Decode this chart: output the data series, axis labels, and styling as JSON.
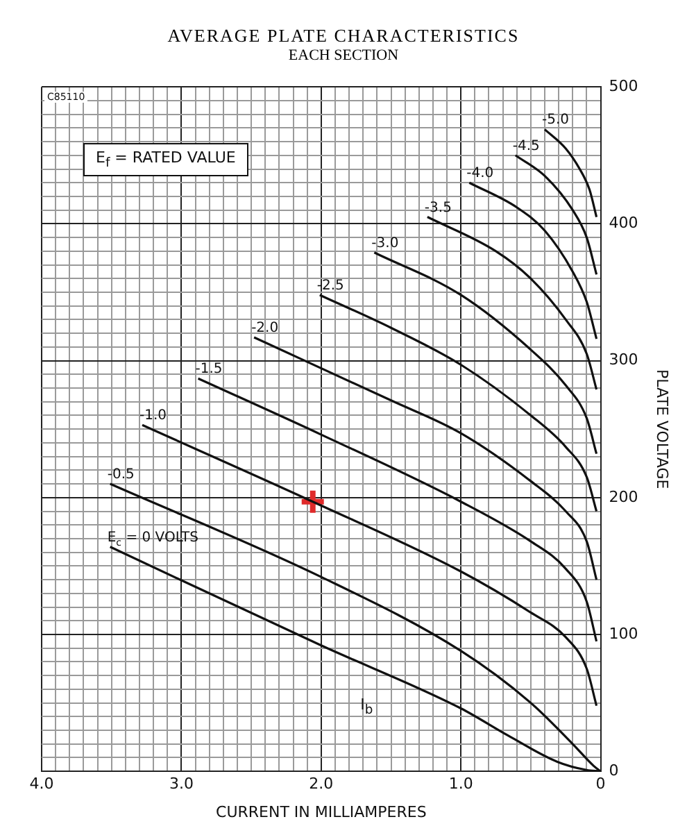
{
  "chart_data": {
    "type": "line",
    "title": "AVERAGE PLATE CHARACTERISTICS",
    "subtitle": "EACH SECTION",
    "xlabel": "CURRENT IN MILLIAMPERES",
    "ylabel": "PLATE VOLTAGE",
    "xlim": [
      4.0,
      0
    ],
    "ylim": [
      0,
      500
    ],
    "xticks": [
      {
        "value": 4.0,
        "label": "4.0"
      },
      {
        "value": 3.9,
        "label": null
      },
      {
        "value": 3.8,
        "label": null
      },
      {
        "value": 3.7,
        "label": null
      },
      {
        "value": 3.6,
        "label": null
      },
      {
        "value": 3.5,
        "label": null
      },
      {
        "value": 3.4,
        "label": null
      },
      {
        "value": 3.3,
        "label": null
      },
      {
        "value": 3.2,
        "label": null
      },
      {
        "value": 3.1,
        "label": null
      },
      {
        "value": 3.0,
        "label": "3.0"
      },
      {
        "value": 2.9,
        "label": null
      },
      {
        "value": 2.8,
        "label": null
      },
      {
        "value": 2.7,
        "label": null
      },
      {
        "value": 2.6,
        "label": null
      },
      {
        "value": 2.5,
        "label": null
      },
      {
        "value": 2.4,
        "label": null
      },
      {
        "value": 2.3,
        "label": null
      },
      {
        "value": 2.2,
        "label": null
      },
      {
        "value": 2.1,
        "label": null
      },
      {
        "value": 2.0,
        "label": "2.0"
      },
      {
        "value": 1.9,
        "label": null
      },
      {
        "value": 1.8,
        "label": null
      },
      {
        "value": 1.7,
        "label": null
      },
      {
        "value": 1.6,
        "label": null
      },
      {
        "value": 1.5,
        "label": null
      },
      {
        "value": 1.4,
        "label": null
      },
      {
        "value": 1.3,
        "label": null
      },
      {
        "value": 1.2,
        "label": null
      },
      {
        "value": 1.1,
        "label": null
      },
      {
        "value": 1.0,
        "label": "1.0"
      },
      {
        "value": 0.9,
        "label": null
      },
      {
        "value": 0.8,
        "label": null
      },
      {
        "value": 0.7,
        "label": null
      },
      {
        "value": 0.6,
        "label": null
      },
      {
        "value": 0.5,
        "label": null
      },
      {
        "value": 0.4,
        "label": null
      },
      {
        "value": 0.3,
        "label": null
      },
      {
        "value": 0.2,
        "label": null
      },
      {
        "value": 0.1,
        "label": null
      },
      0
    ],
    "yticks": [
      0,
      {
        "value": 10,
        "label": null
      },
      {
        "value": 20,
        "label": null
      },
      {
        "value": 30,
        "label": null
      },
      {
        "value": 40,
        "label": null
      },
      {
        "value": 50,
        "label": null
      },
      {
        "value": 60,
        "label": null
      },
      {
        "value": 70,
        "label": null
      },
      {
        "value": 80,
        "label": null
      },
      {
        "value": 90,
        "label": null
      },
      100,
      {
        "value": 110,
        "label": null
      },
      {
        "value": 120,
        "label": null
      },
      {
        "value": 130,
        "label": null
      },
      {
        "value": 140,
        "label": null
      },
      {
        "value": 150,
        "label": null
      },
      {
        "value": 160,
        "label": null
      },
      {
        "value": 170,
        "label": null
      },
      {
        "value": 180,
        "label": null
      },
      {
        "value": 190,
        "label": null
      },
      200,
      {
        "value": 210,
        "label": null
      },
      {
        "value": 220,
        "label": null
      },
      {
        "value": 230,
        "label": null
      },
      {
        "value": 240,
        "label": null
      },
      {
        "value": 250,
        "label": null
      },
      {
        "value": 260,
        "label": null
      },
      {
        "value": 270,
        "label": null
      },
      {
        "value": 280,
        "label": null
      },
      {
        "value": 290,
        "label": null
      },
      300,
      {
        "value": 310,
        "label": null
      },
      {
        "value": 320,
        "label": null
      },
      {
        "value": 330,
        "label": null
      },
      {
        "value": 340,
        "label": null
      },
      {
        "value": 350,
        "label": null
      },
      {
        "value": 360,
        "label": null
      },
      {
        "value": 370,
        "label": null
      },
      {
        "value": 380,
        "label": null
      },
      {
        "value": 390,
        "label": null
      },
      400,
      {
        "value": 410,
        "label": null
      },
      {
        "value": 420,
        "label": null
      },
      {
        "value": 430,
        "label": null
      },
      {
        "value": 440,
        "label": null
      },
      {
        "value": 450,
        "label": null
      },
      {
        "value": 460,
        "label": null
      },
      {
        "value": 470,
        "label": null
      },
      {
        "value": 480,
        "label": null
      },
      {
        "value": 490,
        "label": null
      },
      500
    ],
    "grid": true,
    "legend": false,
    "marker": "none",
    "series": [
      {
        "name": "E$_{c}$ = 0 VOLTS",
        "color": "#111111",
        "x": [
          3.51,
          2.0,
          1.0,
          0.66,
          0.31,
          0.1,
          0
        ],
        "values": [
          164,
          92,
          46,
          26,
          7,
          1,
          0
        ]
      },
      {
        "name": "-0.5",
        "color": "#111111",
        "x": [
          3.51,
          2.0,
          1.0,
          0.5,
          0.2,
          0.05,
          0
        ],
        "values": [
          210,
          142,
          88,
          50,
          20,
          4,
          0
        ]
      },
      {
        "name": "-1.0",
        "color": "#111111",
        "x": [
          3.28,
          2.06,
          1.0,
          0.5,
          0.25,
          0.1,
          0.03
        ],
        "values": [
          253,
          197,
          146,
          116,
          98,
          75,
          48
        ]
      },
      {
        "name": "-1.5",
        "color": "#111111",
        "x": [
          2.88,
          2.0,
          1.0,
          0.5,
          0.25,
          0.1,
          0.03
        ],
        "values": [
          287,
          246,
          197,
          168,
          148,
          124,
          95
        ]
      },
      {
        "name": "-2.0",
        "color": "#111111",
        "x": [
          2.48,
          1.5,
          1.0,
          0.5,
          0.25,
          0.1,
          0.03
        ],
        "values": [
          317,
          271,
          247,
          212,
          190,
          168,
          140
        ]
      },
      {
        "name": "-2.5",
        "color": "#111111",
        "x": [
          2.01,
          1.5,
          1.0,
          0.5,
          0.25,
          0.1,
          0.03
        ],
        "values": [
          348,
          324,
          297,
          260,
          237,
          215,
          190
        ]
      },
      {
        "name": "-3.0",
        "color": "#111111",
        "x": [
          1.62,
          1.0,
          0.5,
          0.25,
          0.1,
          0.03
        ],
        "values": [
          379,
          348,
          308,
          282,
          258,
          232
        ]
      },
      {
        "name": "-3.5",
        "color": "#111111",
        "x": [
          1.24,
          0.75,
          0.5,
          0.25,
          0.1,
          0.03
        ],
        "values": [
          405,
          380,
          360,
          330,
          305,
          279
        ]
      },
      {
        "name": "-4.0",
        "color": "#111111",
        "x": [
          0.94,
          0.6,
          0.4,
          0.2,
          0.1,
          0.03
        ],
        "values": [
          430,
          412,
          395,
          365,
          343,
          316
        ]
      },
      {
        "name": "-4.5",
        "color": "#111111",
        "x": [
          0.61,
          0.4,
          0.2,
          0.1,
          0.03
        ],
        "values": [
          450,
          435,
          410,
          390,
          363
        ]
      },
      {
        "name": "-5.0",
        "color": "#111111",
        "x": [
          0.4,
          0.25,
          0.15,
          0.08,
          0.03
        ],
        "values": [
          469,
          455,
          440,
          425,
          405
        ]
      },
      {
        "type": "scatter",
        "marker": "cross",
        "color": "#e02a2a",
        "x": [
          2.06
        ],
        "values": [
          197
        ]
      }
    ],
    "annotations": [
      "E$_{f}$ = RATED VALUE",
      "C85110",
      "I$_{b}$"
    ]
  }
}
